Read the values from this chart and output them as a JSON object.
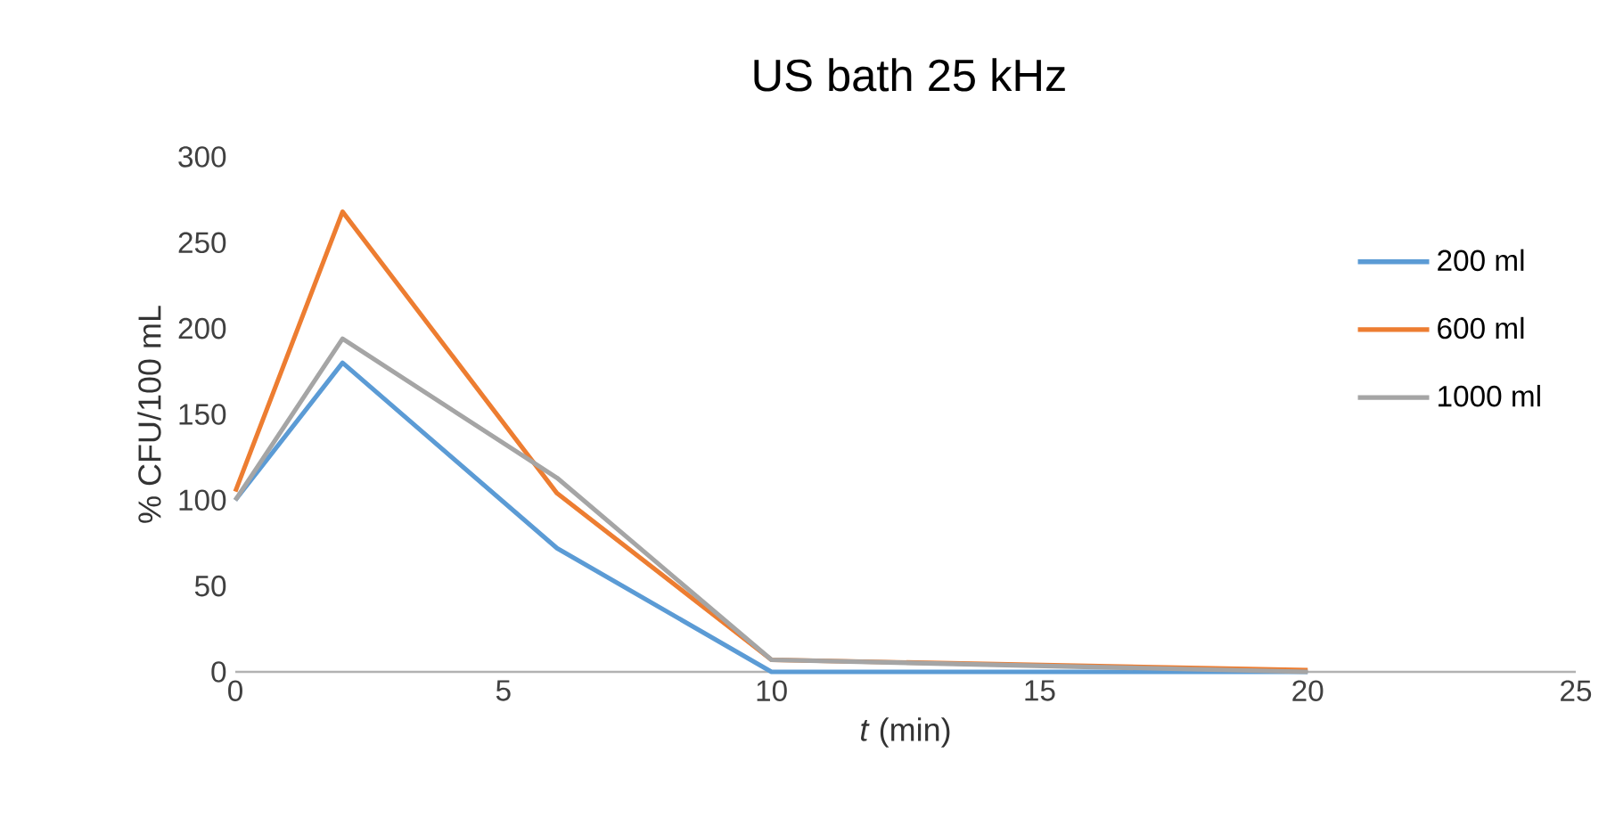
{
  "chart_data": {
    "type": "line",
    "title": "US bath 25 kHz",
    "xlabel": "*t* (min)",
    "ylabel": "% CFU/100 mL",
    "x": [
      0,
      2,
      6,
      10,
      20
    ],
    "series": [
      {
        "name": "200 ml",
        "color": "#5b9bd5",
        "values": [
          100,
          180,
          72,
          0,
          0
        ]
      },
      {
        "name": "600 ml",
        "color": "#ed7d31",
        "values": [
          105,
          268,
          104,
          7,
          1
        ]
      },
      {
        "name": "1000 ml",
        "color": "#a5a5a5",
        "values": [
          100,
          194,
          113,
          7,
          0
        ]
      }
    ],
    "xlim": [
      0,
      25
    ],
    "xticks": [
      0,
      5,
      10,
      15,
      20,
      25
    ],
    "ylim": [
      0,
      300
    ],
    "yticks": [
      0,
      50,
      100,
      150,
      200,
      250,
      300
    ],
    "grid": false,
    "legend": "right",
    "marker": "none",
    "line_style": "solid"
  }
}
